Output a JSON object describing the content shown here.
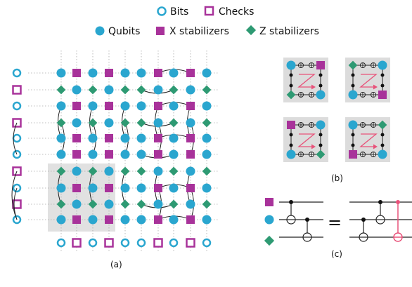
{
  "legend": {
    "bits": "Bits",
    "checks": "Checks",
    "qubits": "Qubits",
    "x_stabilizers": "X stabilizers",
    "z_stabilizers": "Z stabilizers"
  },
  "panel_labels": {
    "a": "(a)",
    "b": "(b)",
    "c": "(c)"
  },
  "equals_sign": "=",
  "colors": {
    "qubit": "#2aa6cf",
    "x_stab": "#a8329a",
    "z_stab": "#2e9a73",
    "cnot_pink": "#e8527a",
    "grid": "#aaaaaa",
    "shade": "#dcdcdc"
  },
  "left_column_pattern": [
    "bit",
    "check",
    "bit",
    "check",
    "bit",
    "bit",
    "check",
    "bit",
    "check",
    "bit"
  ],
  "bottom_row_pattern": [
    "bit",
    "check",
    "bit",
    "check",
    "bit",
    "bit",
    "check",
    "bit",
    "check",
    "bit"
  ],
  "lattice_rows": [
    [
      "q",
      "X",
      "q",
      "X",
      "q",
      "q",
      "X",
      "q",
      "X",
      "q"
    ],
    [
      "Z",
      "q",
      "Z",
      "q",
      "Z",
      "Z",
      "q",
      "Z",
      "q",
      "Z"
    ],
    [
      "q",
      "X",
      "q",
      "X",
      "q",
      "q",
      "X",
      "q",
      "X",
      "q"
    ],
    [
      "Z",
      "q",
      "Z",
      "q",
      "Z",
      "Z",
      "q",
      "Z",
      "q",
      "Z"
    ],
    [
      "q",
      "X",
      "q",
      "X",
      "q",
      "q",
      "X",
      "q",
      "X",
      "q"
    ],
    [
      "q",
      "X",
      "q",
      "X",
      "q",
      "q",
      "X",
      "q",
      "X",
      "q"
    ],
    [
      "Z",
      "q",
      "Z",
      "q",
      "Z",
      "Z",
      "q",
      "Z",
      "q",
      "Z"
    ],
    [
      "q",
      "X",
      "q",
      "X",
      "q",
      "q",
      "X",
      "q",
      "X",
      "q"
    ],
    [
      "Z",
      "q",
      "Z",
      "q",
      "Z",
      "Z",
      "q",
      "Z",
      "q",
      "Z"
    ],
    [
      "q",
      "X",
      "q",
      "X",
      "q",
      "q",
      "X",
      "q",
      "X",
      "q"
    ]
  ]
}
